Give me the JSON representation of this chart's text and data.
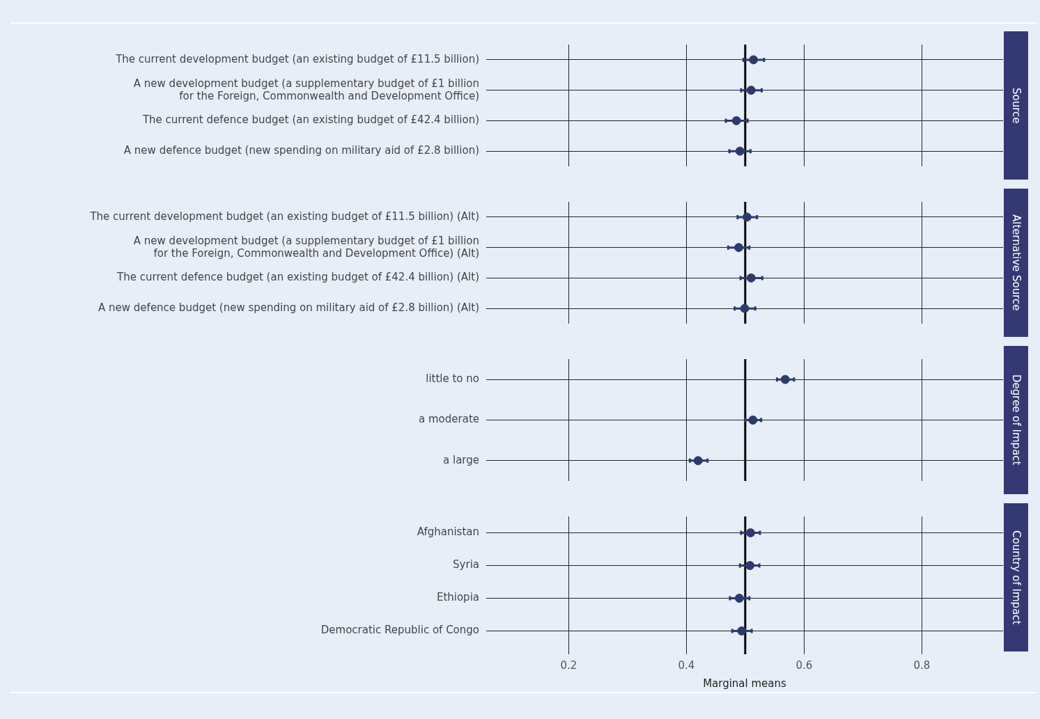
{
  "chart_data": [
    {
      "type": "scatter",
      "orientation": "horizontal",
      "y2label": "Source",
      "categories": [
        "The current development budget (an existing budget of £11.5 billion)",
        "A new development budget (a supplementary budget of £1 billion\nfor the Foreign, Commonwealth and Development Office)",
        "The current defence budget (an existing budget of £42.4 billion)",
        "A new defence budget (new spending on military aid of £2.8 billion)"
      ],
      "values": [
        0.514,
        0.51,
        0.485,
        0.491
      ],
      "errors": [
        [
          0.497,
          0.532
        ],
        [
          0.493,
          0.528
        ],
        [
          0.467,
          0.504
        ],
        [
          0.473,
          0.509
        ]
      ],
      "color": "#2d3a6b",
      "marker": "circle",
      "xlim": [
        0.06,
        0.938
      ],
      "xticks": [
        0.2,
        0.4,
        0.6,
        0.8
      ],
      "grid": true,
      "tick_labels": "y",
      "ref_lines": [
        {
          "axis": "x",
          "value": 0.5,
          "color": "#000000"
        }
      ]
    },
    {
      "type": "scatter",
      "orientation": "horizontal",
      "y2label": "Alternative Source",
      "categories": [
        "The current development budget (an existing budget of £11.5 billion) (Alt)",
        "A new development budget (a supplementary budget of £1 billion\nfor the Foreign, Commonwealth and Development Office) (Alt)",
        "The current defence budget (an existing budget of £42.4 billion) (Alt)",
        "A new defence budget (new spending on military aid of £2.8 billion) (Alt)"
      ],
      "values": [
        0.503,
        0.489,
        0.51,
        0.499
      ],
      "errors": [
        [
          0.487,
          0.52
        ],
        [
          0.471,
          0.507
        ],
        [
          0.492,
          0.529
        ],
        [
          0.482,
          0.517
        ]
      ],
      "color": "#2d3a6b",
      "marker": "circle",
      "xlim": [
        0.06,
        0.938
      ],
      "xticks": [
        0.2,
        0.4,
        0.6,
        0.8
      ],
      "grid": true,
      "tick_labels": "y",
      "ref_lines": [
        {
          "axis": "x",
          "value": 0.5,
          "color": "#000000"
        }
      ]
    },
    {
      "type": "scatter",
      "orientation": "horizontal",
      "y2label": "Degree of Impact",
      "categories": [
        "little to no",
        "a moderate",
        "a large"
      ],
      "values": [
        0.568,
        0.513,
        0.42
      ],
      "errors": [
        [
          0.554,
          0.583
        ],
        [
          0.5,
          0.527
        ],
        [
          0.406,
          0.436
        ]
      ],
      "color": "#2d3a6b",
      "marker": "circle",
      "xlim": [
        0.06,
        0.938
      ],
      "xticks": [
        0.2,
        0.4,
        0.6,
        0.8
      ],
      "grid": true,
      "tick_labels": "y",
      "ref_lines": [
        {
          "axis": "x",
          "value": 0.5,
          "color": "#000000"
        }
      ]
    },
    {
      "type": "scatter",
      "orientation": "horizontal",
      "y2label": "Country of Impact",
      "xlabel": "Marginal means",
      "categories": [
        "Afghanistan",
        "Syria",
        "Ethiopia",
        "Democratic Republic of Congo"
      ],
      "values": [
        0.509,
        0.508,
        0.49,
        0.494
      ],
      "errors": [
        [
          0.493,
          0.525
        ],
        [
          0.491,
          0.524
        ],
        [
          0.474,
          0.507
        ],
        [
          0.478,
          0.511
        ]
      ],
      "color": "#2d3a6b",
      "marker": "circle",
      "xlim": [
        0.06,
        0.938
      ],
      "xticks": [
        0.2,
        0.4,
        0.6,
        0.8
      ],
      "grid": true,
      "ref_lines": [
        {
          "axis": "x",
          "value": 0.5,
          "color": "#000000"
        }
      ]
    }
  ]
}
